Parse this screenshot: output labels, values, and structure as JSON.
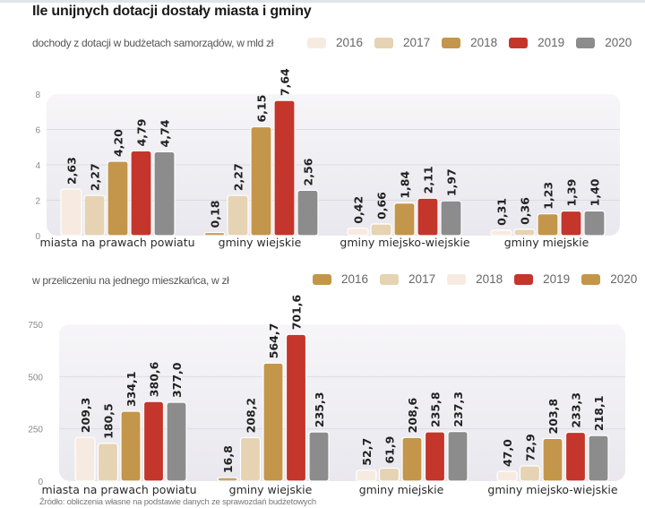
{
  "title": "Ile unijnych dotacji dostały miasta i gminy",
  "source": "Źródło: obliczenia własne na podstawie danych ze sprawozdań budżetowych",
  "colors": {
    "pale": "#F7EBE1",
    "beige": "#E6D3B3",
    "gold": "#C3964B",
    "red": "#C4352B",
    "gray": "#8D8C8C",
    "panel": "#EEEDF2",
    "grid": "#dcdce2"
  },
  "chart_data": [
    {
      "type": "bar",
      "title": "dochody z dotacji w budżetach samorządów,  w mld zł",
      "xlabel": "",
      "ylabel": "",
      "ylim": [
        0,
        8
      ],
      "yticks": [
        "0",
        "2",
        "4",
        "6",
        "8"
      ],
      "ytick_values": [
        0,
        2,
        4,
        6,
        8
      ],
      "grid": true,
      "legend_position": "top-right",
      "categories": [
        "miasta na prawach powiatu",
        "gminy wiejskie",
        "gminy miejsko-wiejskie",
        "gminy miejskie"
      ],
      "legend": [
        {
          "name": "2016",
          "color": "#F7EBE1"
        },
        {
          "name": "2017",
          "color": "#E6D3B3"
        },
        {
          "name": "2018",
          "color": "#C3964B"
        },
        {
          "name": "2019",
          "color": "#C4352B"
        },
        {
          "name": "2020",
          "color": "#8D8C8C"
        }
      ],
      "series": [
        {
          "name": "2016",
          "color": "#F7EBE1",
          "values": [
            2.63,
            0.18,
            0.42,
            0.31
          ],
          "labels": [
            "2,63",
            "0,18",
            "0,42",
            "0,31"
          ]
        },
        {
          "name": "2017",
          "color": "#E6D3B3",
          "values": [
            2.27,
            2.27,
            0.66,
            0.36
          ],
          "labels": [
            "2,27",
            "2,27",
            "0,66",
            "0,36"
          ]
        },
        {
          "name": "2018",
          "color": "#C3964B",
          "values": [
            4.2,
            6.15,
            1.84,
            1.23
          ],
          "labels": [
            "4,20",
            "6,15",
            "1,84",
            "1,23"
          ]
        },
        {
          "name": "2019",
          "color": "#C4352B",
          "values": [
            4.79,
            7.64,
            2.11,
            1.39
          ],
          "labels": [
            "4,79",
            "7,64",
            "2,11",
            "1,39"
          ]
        },
        {
          "name": "2020",
          "color": "#8D8C8C",
          "values": [
            4.74,
            2.56,
            1.97,
            1.4
          ],
          "labels": [
            "4,74",
            "2,56",
            "1,97",
            "1,40"
          ]
        }
      ],
      "bar_color_overrides": [
        {
          "series": 0,
          "category": 1,
          "color": "#C9A36A"
        }
      ]
    },
    {
      "type": "bar",
      "title": "w przeliczeniu na jednego mieszkańca, w zł",
      "xlabel": "",
      "ylabel": "",
      "ylim": [
        0,
        750
      ],
      "yticks": [
        "0",
        "250",
        "500",
        "750"
      ],
      "ytick_values": [
        0,
        250,
        500,
        750
      ],
      "grid": true,
      "legend_position": "top-right",
      "categories": [
        "miasta na prawach powiatu",
        "gminy wiejskie",
        "gminy miejskie",
        "gminy miejsko-wiejskie"
      ],
      "legend": [
        {
          "name": "2016",
          "color": "#C3964B"
        },
        {
          "name": "2017",
          "color": "#E6D3B3"
        },
        {
          "name": "2018",
          "color": "#F7EBE1"
        },
        {
          "name": "2019",
          "color": "#C4352B"
        },
        {
          "name": "2020",
          "color": "#C3964B"
        }
      ],
      "series": [
        {
          "name": "2016",
          "color": "#F7EBE1",
          "values": [
            209.3,
            16.8,
            52.7,
            47.0
          ],
          "labels": [
            "209,3",
            "16,8",
            "52,7",
            "47,0"
          ]
        },
        {
          "name": "2017",
          "color": "#E6D3B3",
          "values": [
            180.5,
            208.2,
            61.9,
            72.9
          ],
          "labels": [
            "180,5",
            "208,2",
            "61,9",
            "72,9"
          ]
        },
        {
          "name": "2018",
          "color": "#C3964B",
          "values": [
            334.1,
            564.7,
            208.6,
            203.8
          ],
          "labels": [
            "334,1",
            "564,7",
            "208,6",
            "203,8"
          ]
        },
        {
          "name": "2019",
          "color": "#C4352B",
          "values": [
            380.6,
            701.6,
            235.8,
            233.3
          ],
          "labels": [
            "380,6",
            "701,6",
            "235,8",
            "233,3"
          ]
        },
        {
          "name": "2020",
          "color": "#8D8C8C",
          "values": [
            377.0,
            235.3,
            237.3,
            218.1
          ],
          "labels": [
            "377,0",
            "235,3",
            "237,3",
            "218,1"
          ]
        }
      ],
      "bar_color_overrides": [
        {
          "series": 0,
          "category": 1,
          "color": "#C9A36A"
        }
      ]
    }
  ]
}
